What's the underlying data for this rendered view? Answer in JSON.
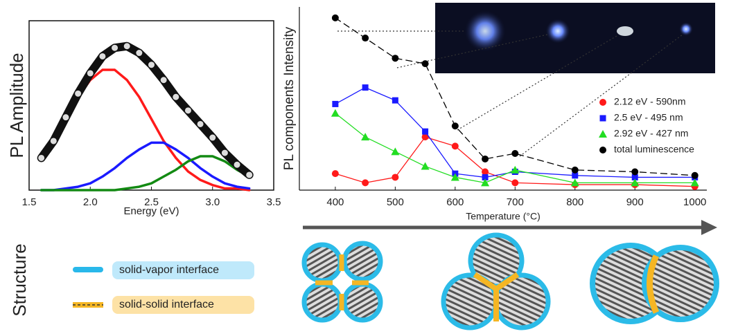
{
  "chart_data": [
    {
      "type": "line",
      "y_label": "PL Amplitude",
      "x_label": "Energy (eV)",
      "xlim": [
        1.5,
        3.5
      ],
      "ylim": [
        0,
        1
      ],
      "xticks": [
        1.5,
        {
          "value": 2,
          "label": "2.0"
        },
        {
          "value": 2.5,
          "label": "2.5"
        },
        {
          "value": 3,
          "label": "3.0"
        },
        3.5
      ],
      "x": [
        1.6,
        1.7,
        1.8,
        1.9,
        2.0,
        2.1,
        2.2,
        2.3,
        2.4,
        2.5,
        2.6,
        2.7,
        2.8,
        2.9,
        3.0,
        3.1,
        3.2,
        3.3
      ],
      "series": [
        {
          "color": "#ff1a1a",
          "values": [
            0.19,
            0.29,
            0.42,
            0.55,
            0.65,
            0.71,
            0.71,
            0.65,
            0.55,
            0.42,
            0.29,
            0.19,
            0.11,
            0.06,
            0.03,
            0.01,
            0.01,
            0
          ]
        },
        {
          "color": "#1a1aff",
          "values": [
            0,
            0,
            0.01,
            0.02,
            0.04,
            0.08,
            0.13,
            0.19,
            0.24,
            0.28,
            0.28,
            0.24,
            0.19,
            0.13,
            0.08,
            0.04,
            0.02,
            0.01
          ]
        },
        {
          "color": "#138a13",
          "values": [
            0,
            0,
            0,
            0,
            0,
            0,
            0,
            0.01,
            0.02,
            0.04,
            0.08,
            0.12,
            0.17,
            0.2,
            0.2,
            0.17,
            0.12,
            0.08
          ]
        },
        {
          "color": "#111111",
          "marker": "circle",
          "values": [
            0.19,
            0.29,
            0.43,
            0.57,
            0.69,
            0.79,
            0.84,
            0.85,
            0.81,
            0.74,
            0.65,
            0.55,
            0.47,
            0.39,
            0.31,
            0.22,
            0.15,
            0.09
          ]
        }
      ]
    },
    {
      "type": "line",
      "y_label": "PL components Intensity",
      "x_label": "Temperature (°C)",
      "xlim": [
        340,
        1020
      ],
      "ylim": [
        0,
        1
      ],
      "xticks": [
        400,
        500,
        600,
        700,
        800,
        900,
        1000
      ],
      "x": [
        400,
        450,
        500,
        550,
        600,
        650,
        700,
        800,
        900,
        1000
      ],
      "legend": "right",
      "series": [
        {
          "name": "2.12 eV - 590nm",
          "color": "#ff1a1a",
          "marker": "circle",
          "values": [
            0.09,
            0.04,
            0.07,
            0.29,
            0.24,
            0.1,
            0.04,
            0.03,
            0.03,
            0.02
          ]
        },
        {
          "name": "2.5 eV - 495 nm",
          "color": "#1a1aff",
          "marker": "square",
          "values": [
            0.47,
            0.56,
            0.49,
            0.32,
            0.09,
            0.07,
            0.1,
            0.08,
            0.07,
            0.07
          ]
        },
        {
          "name": "2.92 eV - 427 nm",
          "color": "#22dd22",
          "marker": "triangle",
          "values": [
            0.42,
            0.29,
            0.21,
            0.13,
            0.07,
            0.04,
            0.11,
            0.04,
            0.04,
            0.04
          ]
        },
        {
          "name": "total luminescence",
          "color": "#000000",
          "marker": "circle",
          "dash": true,
          "values": [
            0.94,
            0.83,
            0.72,
            0.69,
            0.35,
            0.17,
            0.2,
            0.11,
            0.1,
            0.08
          ]
        }
      ]
    }
  ],
  "structure": {
    "label": "Structure",
    "legend": [
      "solid-vapor interface",
      "solid-solid interface"
    ]
  }
}
